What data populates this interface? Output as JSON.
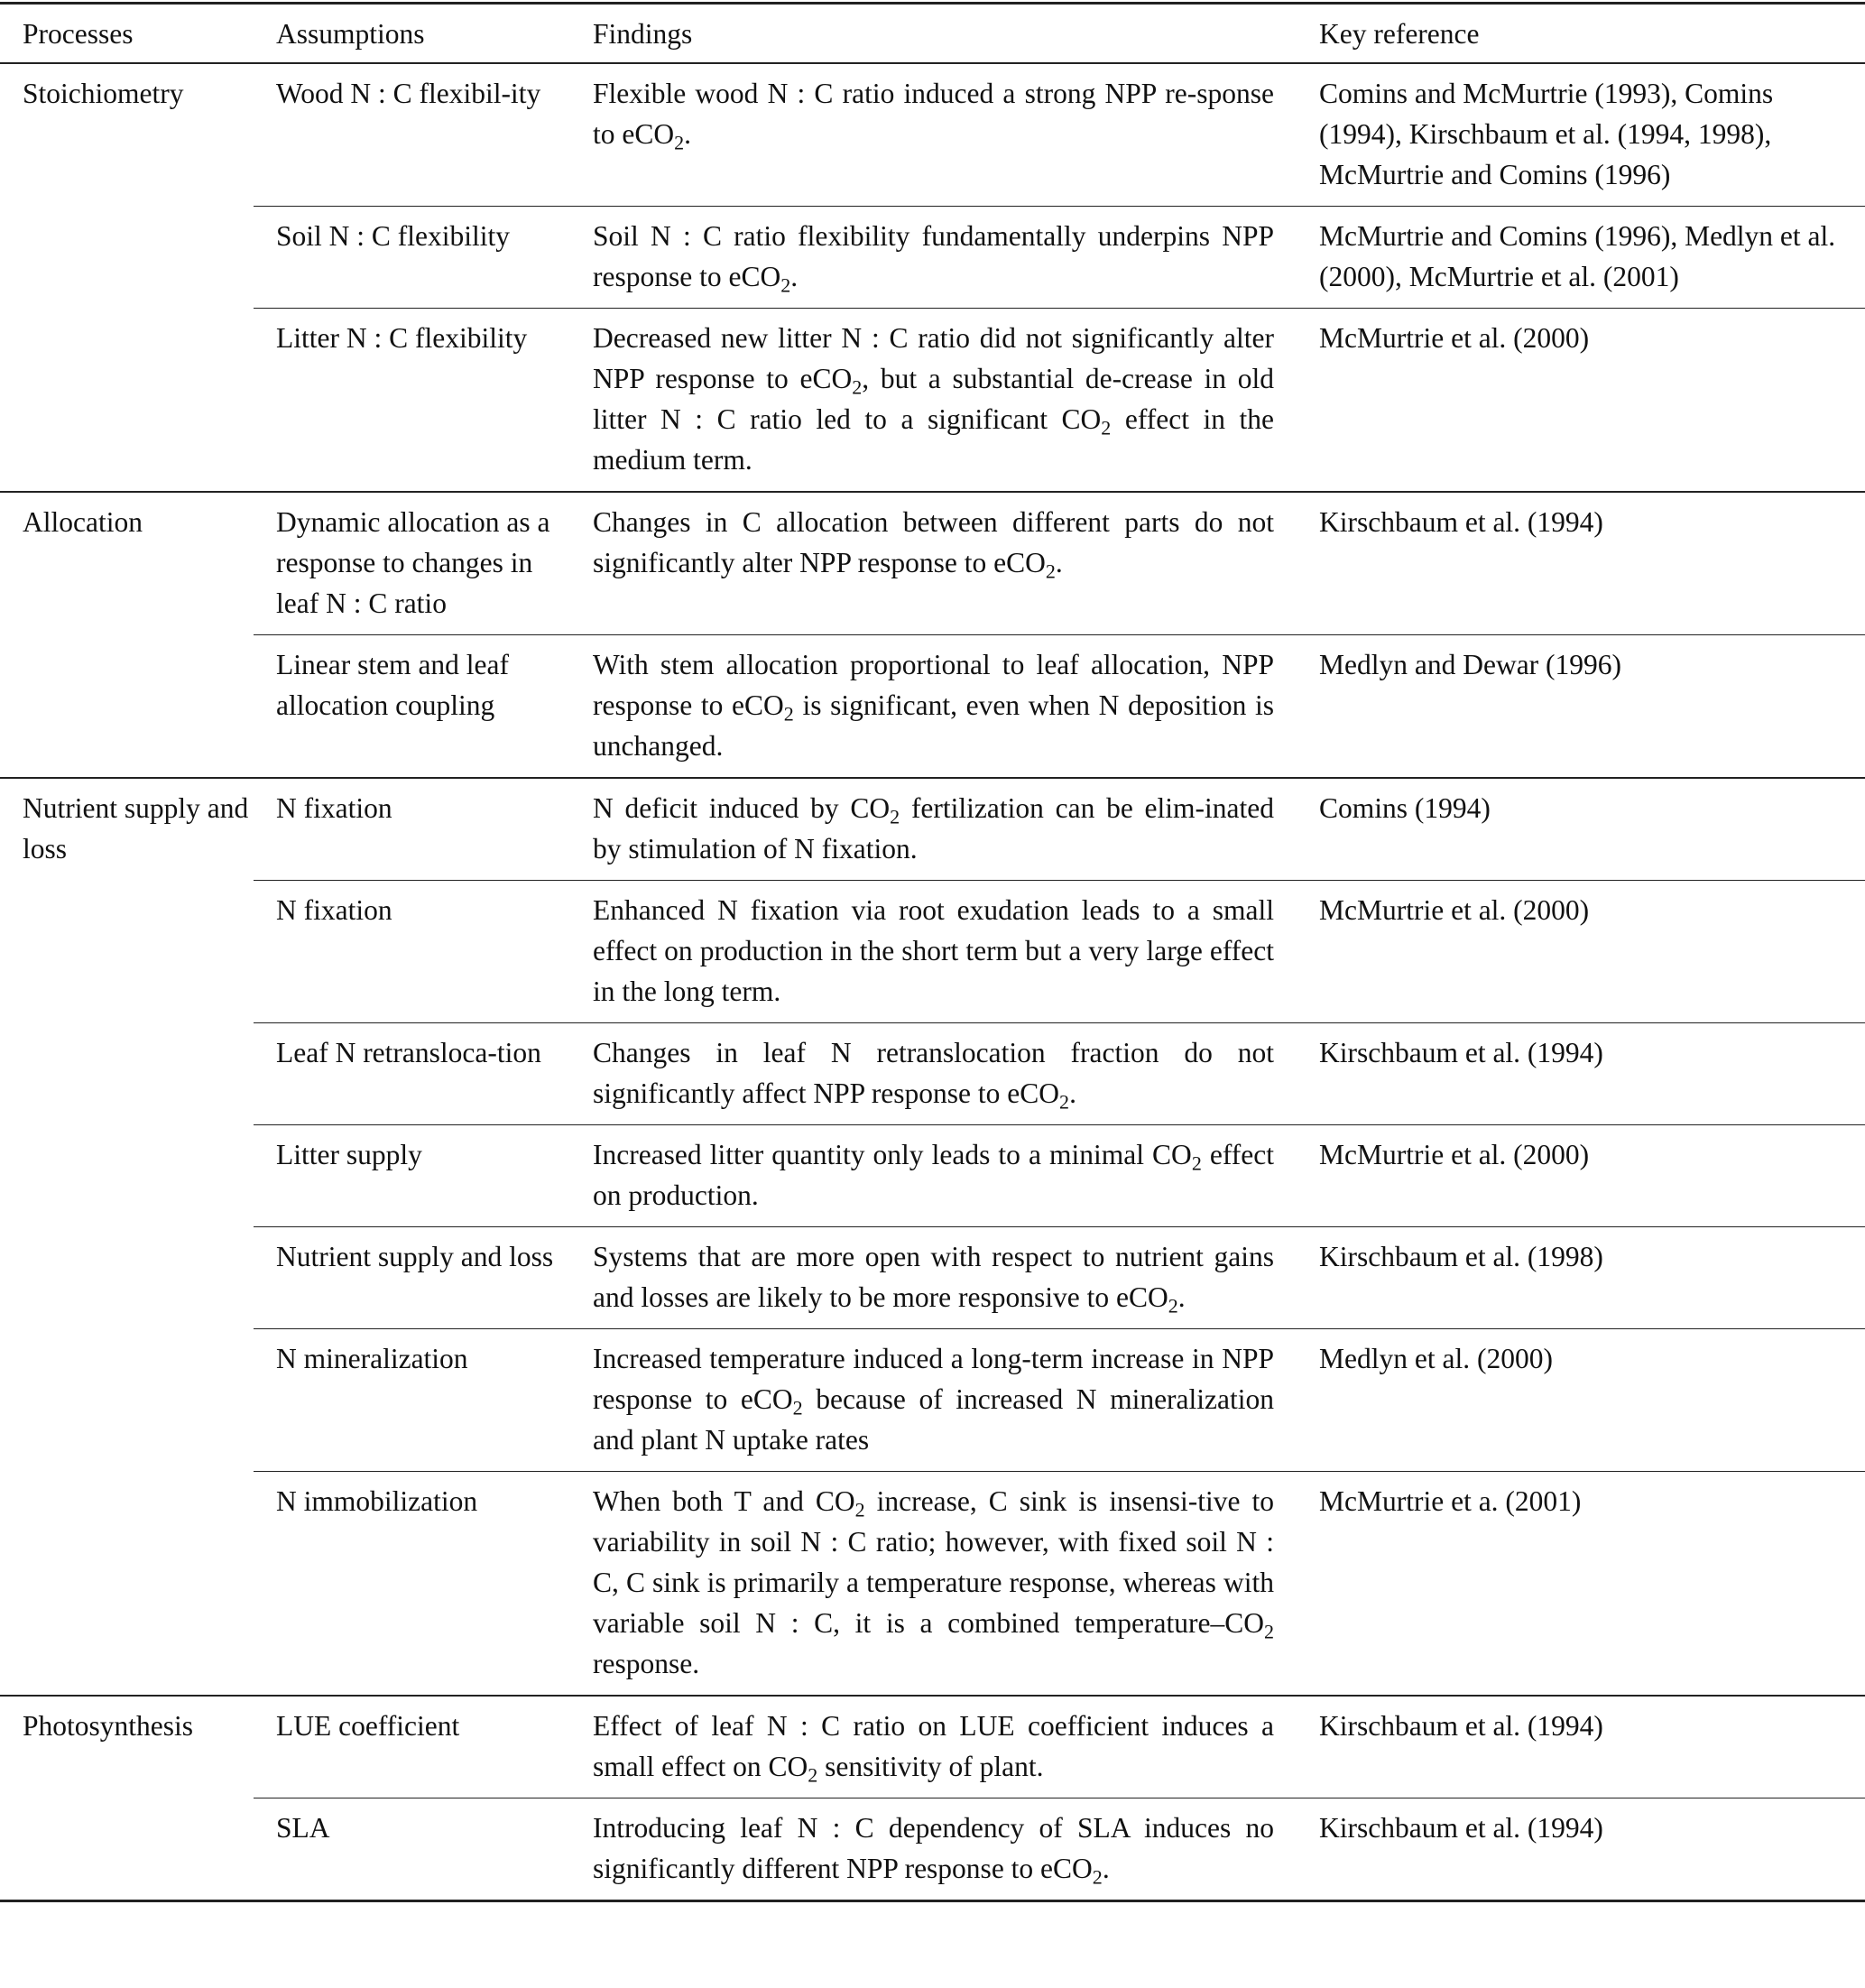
{
  "headers": {
    "processes": "Processes",
    "assumptions": "Assumptions",
    "findings": "Findings",
    "reference": "Key reference"
  },
  "groups": [
    {
      "process": "Stoichiometry",
      "items": [
        {
          "assumption": "Wood N : C flexibil-ity",
          "finding": "Flexible wood N : C ratio induced a strong NPP re-sponse to eCO2.",
          "reference": "Comins and McMurtrie (1993), Comins (1994), Kirschbaum et al. (1994, 1998), McMurtrie and Comins (1996)"
        },
        {
          "assumption": "Soil N : C flexibility",
          "finding": "Soil N : C ratio flexibility fundamentally underpins NPP response to eCO2.",
          "reference": "McMurtrie and Comins (1996), Medlyn et al. (2000), McMurtrie et al. (2001)"
        },
        {
          "assumption": "Litter N : C flexibility",
          "finding": "Decreased new litter N : C ratio did not significantly alter NPP response to eCO2, but a substantial de-crease in old litter N : C ratio led to a significant CO2 effect in the medium term.",
          "reference": "McMurtrie et al. (2000)"
        }
      ]
    },
    {
      "process": "Allocation",
      "items": [
        {
          "assumption": "Dynamic allocation as a response to changes in leaf N : C ratio",
          "finding": "Changes in C allocation between different parts do not significantly alter NPP response to eCO2.",
          "reference": "Kirschbaum et al. (1994)"
        },
        {
          "assumption": "Linear stem and leaf allocation coupling",
          "finding": "With stem allocation proportional to leaf allocation, NPP response to eCO2 is significant, even when N deposition is unchanged.",
          "reference": "Medlyn and Dewar (1996)"
        }
      ]
    },
    {
      "process": "Nutrient supply and loss",
      "items": [
        {
          "assumption": "N fixation",
          "finding": "N deficit induced by CO2 fertilization can be elim-inated by stimulation of N fixation.",
          "reference": "Comins (1994)"
        },
        {
          "assumption": "N fixation",
          "finding": "Enhanced N fixation via root exudation leads to a small effect on production in the short term but a very large effect in the long term.",
          "reference": "McMurtrie et al. (2000)"
        },
        {
          "assumption": "Leaf N retransloca-tion",
          "finding": "Changes in leaf N retranslocation fraction do not significantly affect NPP response to eCO2.",
          "reference": "Kirschbaum et al. (1994)"
        },
        {
          "assumption": "Litter supply",
          "finding": "Increased litter quantity only leads to a minimal CO2 effect on production.",
          "reference": "McMurtrie et al. (2000)"
        },
        {
          "assumption": "Nutrient supply and loss",
          "finding": "Systems that are more open with respect to nutrient gains and losses are likely to be more responsive to eCO2.",
          "reference": "Kirschbaum et al. (1998)"
        },
        {
          "assumption": "N mineralization",
          "finding": "Increased temperature induced a long-term increase in NPP response to eCO2 because of increased N mineralization and plant N uptake rates",
          "reference": "Medlyn et al. (2000)"
        },
        {
          "assumption": "N immobilization",
          "finding": "When both T and CO2 increase, C sink is insensi-tive to variability in soil N : C ratio; however, with fixed soil N : C, C sink is primarily a temperature response, whereas with variable soil N : C, it is a combined temperature–CO2 response.",
          "reference": "McMurtrie et a. (2001)"
        }
      ]
    },
    {
      "process": "Photosynthesis",
      "items": [
        {
          "assumption": "LUE coefficient",
          "finding": "Effect of leaf N : C ratio on LUE coefficient induces a small effect on CO2 sensitivity of plant.",
          "reference": "Kirschbaum et al. (1994)"
        },
        {
          "assumption": "SLA",
          "finding": "Introducing leaf N : C dependency of SLA induces no significantly different NPP response to eCO2.",
          "reference": "Kirschbaum et al. (1994)"
        }
      ]
    }
  ]
}
